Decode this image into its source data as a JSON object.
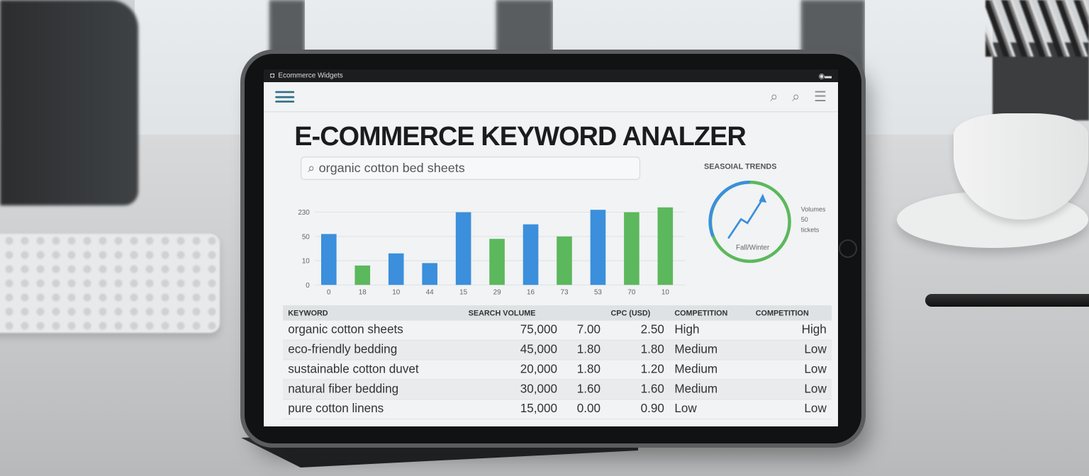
{
  "statusbar": {
    "app_label": "Ecommerce Widgets"
  },
  "header": {
    "icons": [
      "menu-icon",
      "search-icon",
      "search-icon",
      "list-icon"
    ]
  },
  "title": "E-COMMERCE KEYWORD ANALZER",
  "search": {
    "value": "organic cotton bed sheets"
  },
  "chart_data": {
    "type": "bar",
    "categories": [
      "0",
      "18",
      "10",
      "44",
      "15",
      "29",
      "16",
      "73",
      "53",
      "70",
      "10"
    ],
    "values": [
      68,
      8,
      22,
      9,
      230,
      46,
      140,
      50,
      248,
      230,
      266
    ],
    "colors": [
      "#3b8fdc",
      "#5cb85c",
      "#3b8fdc",
      "#3b8fdc",
      "#3b8fdc",
      "#5cb85c",
      "#3b8fdc",
      "#5cb85c",
      "#3b8fdc",
      "#5cb85c",
      "#5cb85c"
    ],
    "yticks": [
      0,
      10,
      50,
      230
    ],
    "grid": true
  },
  "seasonal": {
    "title": "SEASOIAL TRENDS",
    "center_label": "Fall/Winter",
    "side_note": [
      "Volumes",
      "50",
      "tickets"
    ],
    "ring_colors": {
      "blue": "#3b8fdc",
      "green": "#5cb85c"
    }
  },
  "table": {
    "headers": [
      "KEYWORD",
      "SEARCH VOLUME",
      "",
      "CPC (USD)",
      "COMPETITION",
      "COMPETITION"
    ],
    "rows": [
      [
        "organic cotton sheets",
        "75,000",
        "7.00",
        "2.50",
        "High",
        "High"
      ],
      [
        "eco-friendly bedding",
        "45,000",
        "1.80",
        "1.80",
        "Medium",
        "Low"
      ],
      [
        "sustainable cotton duvet",
        "20,000",
        "1.80",
        "1.20",
        "Medium",
        "Low"
      ],
      [
        "natural fiber bedding",
        "30,000",
        "1.60",
        "1.60",
        "Medium",
        "Low"
      ],
      [
        "pure cotton linens",
        "15,000",
        "0.00",
        "0.90",
        "Low",
        "Low"
      ]
    ]
  }
}
